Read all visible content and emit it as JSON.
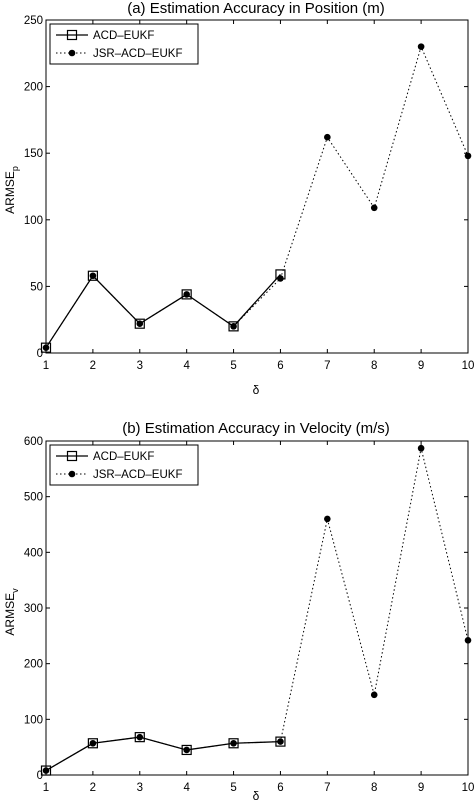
{
  "chart_data": [
    {
      "type": "line",
      "title": "(a) Estimation Accuracy in Position (m)",
      "xlabel": "δ",
      "ylabel": "ARMSE",
      "ylabel_sub": "p",
      "x": [
        1,
        2,
        3,
        4,
        5,
        6,
        7,
        8,
        9,
        10
      ],
      "xlim": [
        1,
        10
      ],
      "ylim": [
        0,
        250
      ],
      "yticks": [
        0,
        50,
        100,
        150,
        200,
        250
      ],
      "grid": false,
      "legend": "top-left",
      "series": [
        {
          "name": "ACD–EUKF",
          "style": "solid",
          "marker": "open-square",
          "x": [
            1,
            2,
            3,
            4,
            5,
            6
          ],
          "values": [
            4,
            58,
            22,
            44,
            20,
            59
          ]
        },
        {
          "name": "JSR–ACD–EUKF",
          "style": "dotted",
          "marker": "filled-circle",
          "x": [
            1,
            2,
            3,
            4,
            5,
            6,
            7,
            8,
            9,
            10
          ],
          "values": [
            4,
            58,
            22,
            44,
            20,
            56,
            162,
            109,
            230,
            148
          ]
        }
      ]
    },
    {
      "type": "line",
      "title": "(b) Estimation Accuracy in Velocity (m/s)",
      "xlabel": "δ",
      "ylabel": "ARMSE",
      "ylabel_sub": "v",
      "x": [
        1,
        2,
        3,
        4,
        5,
        6,
        7,
        8,
        9,
        10
      ],
      "xlim": [
        1,
        10
      ],
      "ylim": [
        0,
        600
      ],
      "yticks": [
        0,
        100,
        200,
        300,
        400,
        500,
        600
      ],
      "grid": false,
      "legend": "top-left",
      "series": [
        {
          "name": "ACD–EUKF",
          "style": "solid",
          "marker": "open-square",
          "x": [
            1,
            2,
            3,
            4,
            5,
            6
          ],
          "values": [
            8,
            57,
            68,
            45,
            57,
            60
          ]
        },
        {
          "name": "JSR–ACD–EUKF",
          "style": "dotted",
          "marker": "filled-circle",
          "x": [
            1,
            2,
            3,
            4,
            5,
            6,
            7,
            8,
            9,
            10
          ],
          "values": [
            8,
            57,
            68,
            45,
            57,
            60,
            460,
            144,
            587,
            242
          ]
        }
      ]
    }
  ]
}
